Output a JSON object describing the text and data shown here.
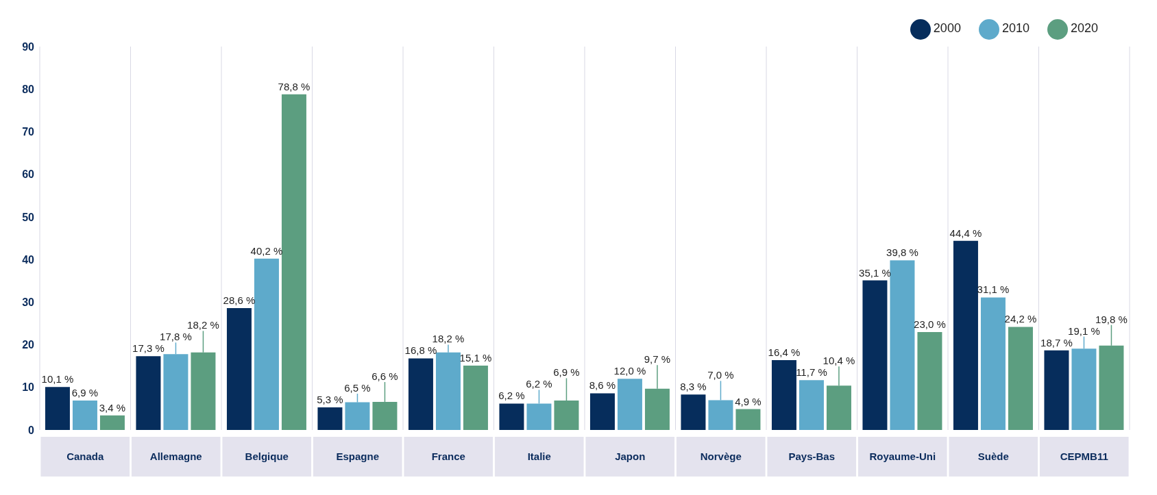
{
  "chart_data": {
    "type": "bar",
    "categories": [
      "Canada",
      "Allemagne",
      "Belgique",
      "Espagne",
      "France",
      "Italie",
      "Japon",
      "Norvège",
      "Pays-Bas",
      "Royaume-Uni",
      "Suède",
      "CEPMB11"
    ],
    "series": [
      {
        "name": "2000",
        "color": "#062d5c",
        "values": [
          10.1,
          17.3,
          28.6,
          5.3,
          16.8,
          6.2,
          8.6,
          8.3,
          16.4,
          35.1,
          44.4,
          18.7
        ],
        "value_labels": [
          "10,1 %",
          "17,3 %",
          "28,6 %",
          "5,3 %",
          "16,8 %",
          "6,2 %",
          "8,6 %",
          "8,3 %",
          "16,4 %",
          "35,1 %",
          "44,4 %",
          "18,7 %"
        ]
      },
      {
        "name": "2010",
        "color": "#5eaacb",
        "values": [
          6.9,
          17.8,
          40.2,
          6.5,
          18.2,
          6.2,
          12.0,
          7.0,
          11.7,
          39.8,
          31.1,
          19.1
        ],
        "value_labels": [
          "6,9 %",
          "17,8 %",
          "40,2 %",
          "6,5 %",
          "18,2 %",
          "6,2 %",
          "12,0 %",
          "7,0 %",
          "11,7 %",
          "39,8 %",
          "31,1 %",
          "19,1 %"
        ]
      },
      {
        "name": "2020",
        "color": "#5c9e80",
        "values": [
          3.4,
          18.2,
          78.8,
          6.6,
          15.1,
          6.9,
          9.7,
          4.9,
          10.4,
          23.0,
          24.2,
          19.8
        ],
        "value_labels": [
          "3,4 %",
          "18,2 %",
          "78,8 %",
          "6,6 %",
          "15,1 %",
          "6,9 %",
          "9,7 %",
          "4,9 %",
          "10,4 %",
          "23,0 %",
          "24,2 %",
          "19,8 %"
        ]
      }
    ],
    "ylim": [
      0,
      90
    ],
    "yticks": [
      0,
      10,
      20,
      30,
      40,
      50,
      60,
      70,
      80,
      90
    ],
    "grid": "x",
    "legend": "top right"
  }
}
